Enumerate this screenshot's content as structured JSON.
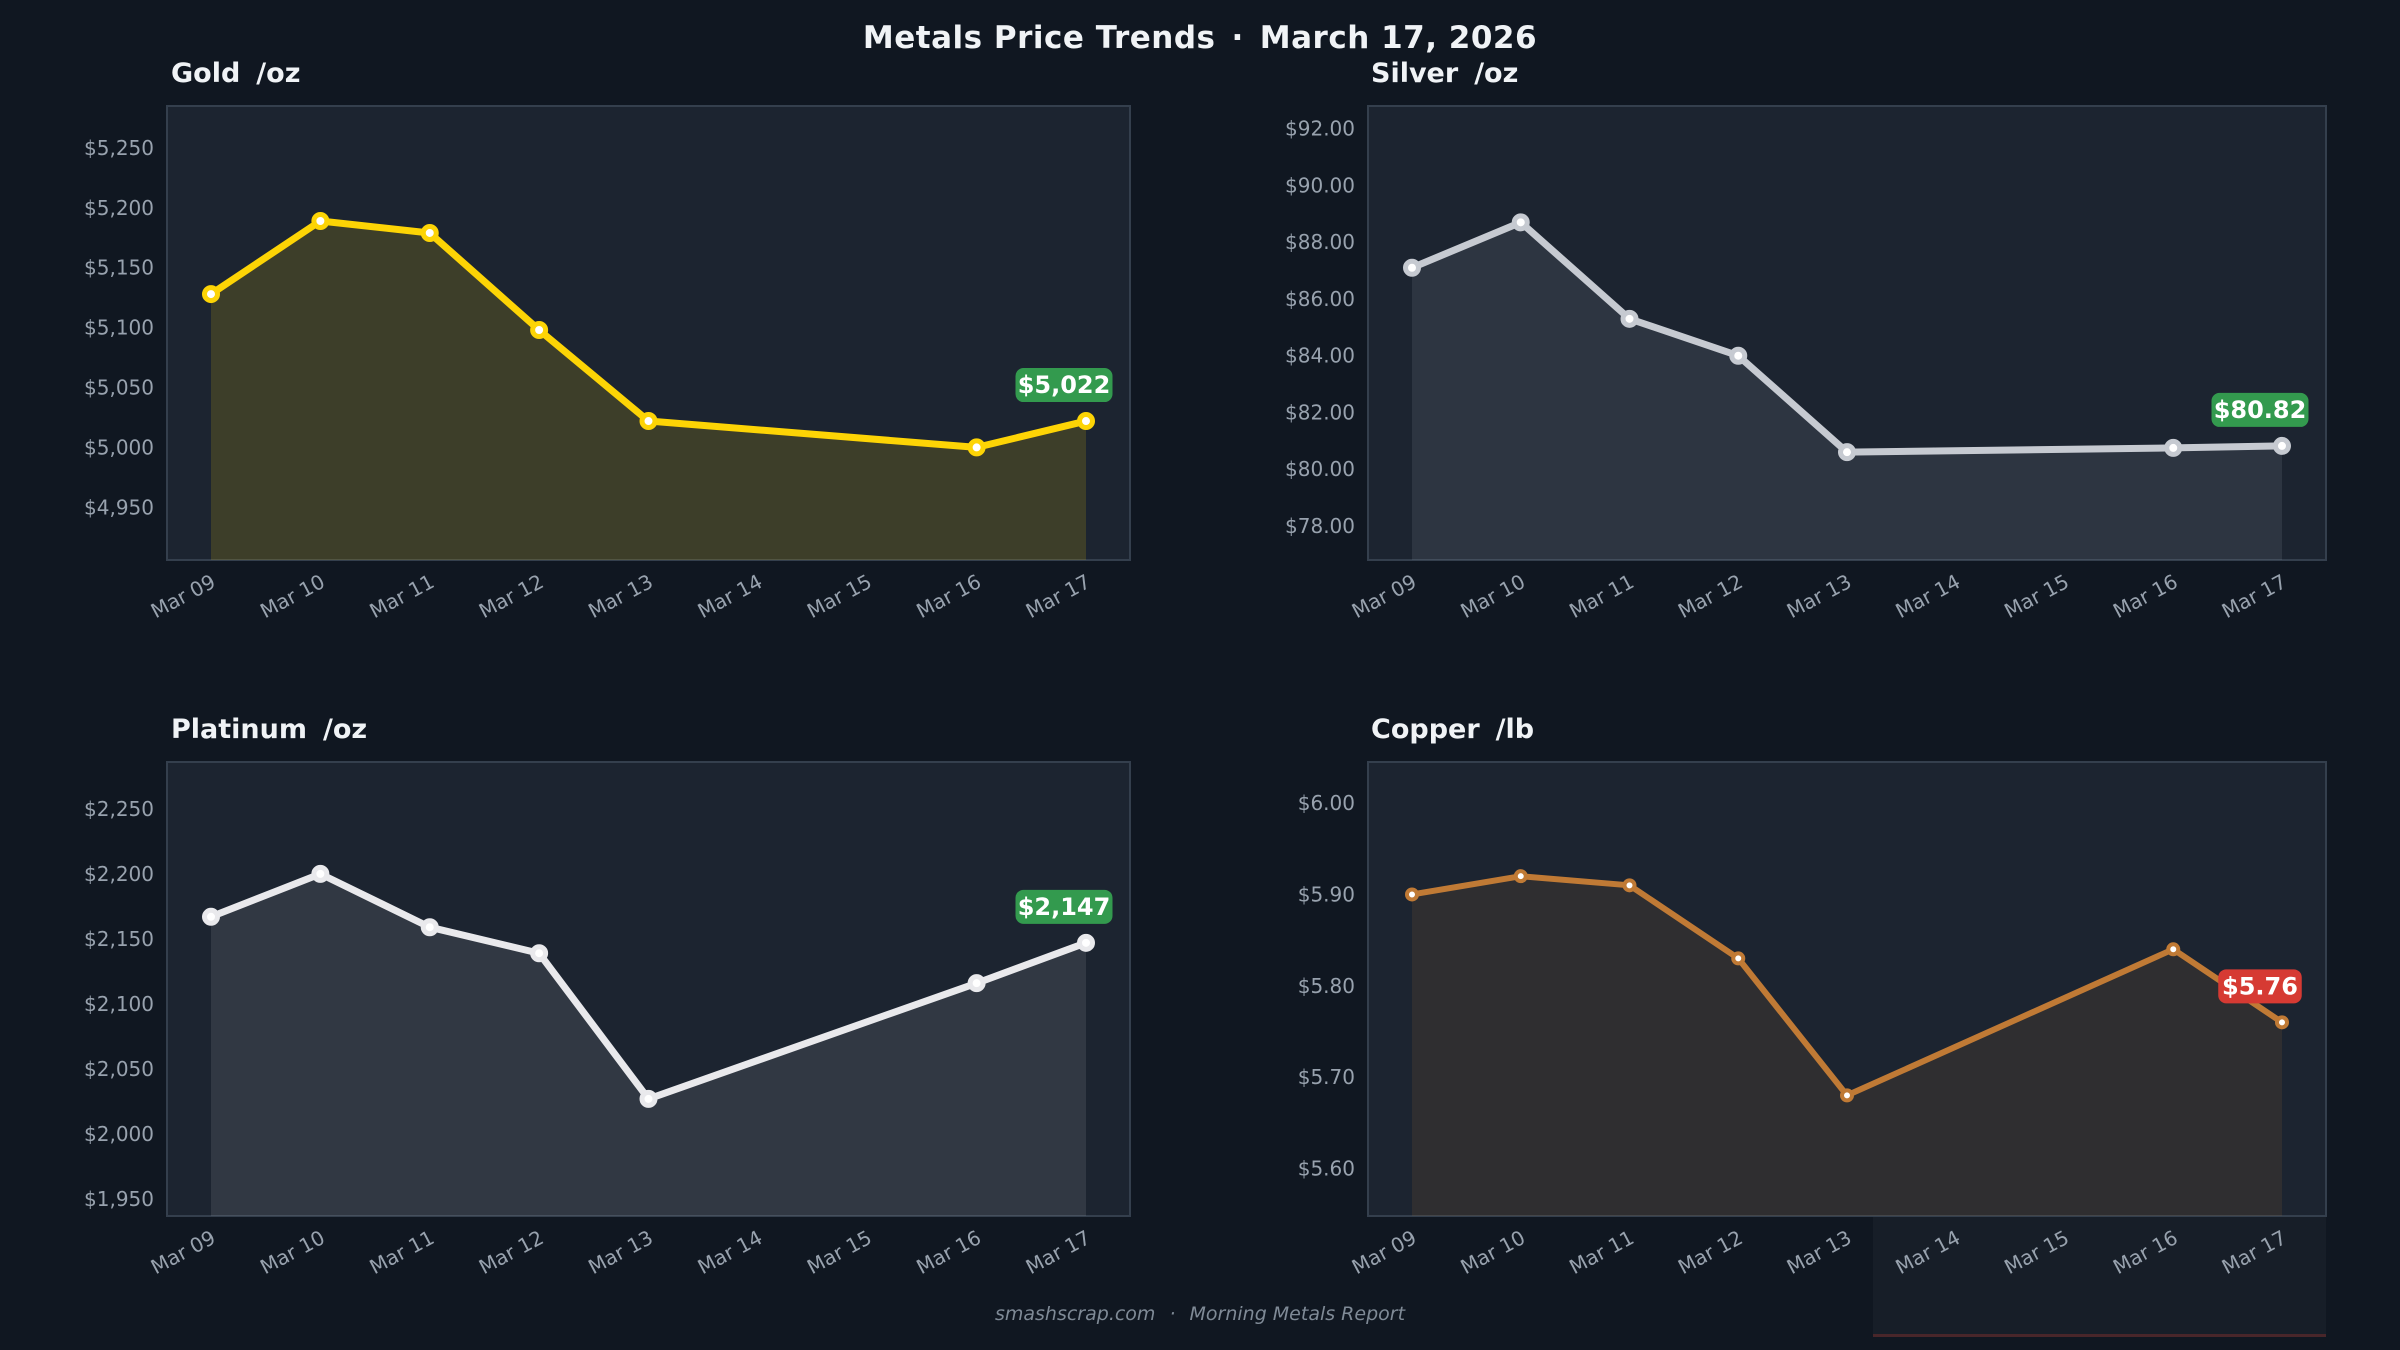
{
  "page": {
    "title": "Metals Price Trends",
    "title_separator": "·",
    "title_date": "March 17, 2026",
    "footer_site": "smashscrap.com",
    "footer_separator": "·",
    "footer_report": "Morning Metals Report"
  },
  "colors": {
    "background": "#101721",
    "plot_background": "#1c2430",
    "plot_border": "#343f4d",
    "tick_label": "#98a2ae",
    "title_text": "#f0f3f6",
    "footer_text": "#7f8a96",
    "badge_up": "#339a4e",
    "badge_down": "#d63a33",
    "badge_text": "#ffffff"
  },
  "chart_data": [
    {
      "id": "gold",
      "type": "line",
      "title": "Gold",
      "unit": "/oz",
      "categories": [
        "Mar 09",
        "Mar 10",
        "Mar 11",
        "Mar 12",
        "Mar 13",
        "Mar 14",
        "Mar 15",
        "Mar 16",
        "Mar 17"
      ],
      "values": [
        5128,
        5189,
        5179,
        5098,
        5022,
        null,
        null,
        5000,
        5022
      ],
      "yticks": [
        {
          "label": "$5,250",
          "value": 5250
        },
        {
          "label": "$5,200",
          "value": 5200
        },
        {
          "label": "$5,150",
          "value": 5150
        },
        {
          "label": "$5,100",
          "value": 5100
        },
        {
          "label": "$5,050",
          "value": 5050
        },
        {
          "label": "$5,000",
          "value": 5000
        },
        {
          "label": "$4,950",
          "value": 4950
        }
      ],
      "ylim": [
        4906,
        5285
      ],
      "line_color": "#fdd405",
      "fill_color": "rgba(253,212,5,0.15)",
      "last_value_label": "$5,022",
      "last_value_status": "up"
    },
    {
      "id": "silver",
      "type": "line",
      "title": "Silver",
      "unit": "/oz",
      "categories": [
        "Mar 09",
        "Mar 10",
        "Mar 11",
        "Mar 12",
        "Mar 13",
        "Mar 14",
        "Mar 15",
        "Mar 16",
        "Mar 17"
      ],
      "values": [
        87.1,
        88.7,
        85.3,
        84.0,
        80.6,
        null,
        null,
        80.75,
        80.82
      ],
      "yticks": [
        {
          "label": "$92.00",
          "value": 92
        },
        {
          "label": "$90.00",
          "value": 90
        },
        {
          "label": "$88.00",
          "value": 88
        },
        {
          "label": "$86.00",
          "value": 86
        },
        {
          "label": "$84.00",
          "value": 84
        },
        {
          "label": "$82.00",
          "value": 82
        },
        {
          "label": "$80.00",
          "value": 80
        },
        {
          "label": "$78.00",
          "value": 78
        }
      ],
      "ylim": [
        76.8,
        92.8
      ],
      "line_color": "#c6cad1",
      "fill_color": "rgba(198,204,213,0.10)",
      "last_value_label": "$80.82",
      "last_value_status": "up"
    },
    {
      "id": "platinum",
      "type": "line",
      "title": "Platinum",
      "unit": "/oz",
      "categories": [
        "Mar 09",
        "Mar 10",
        "Mar 11",
        "Mar 12",
        "Mar 13",
        "Mar 14",
        "Mar 15",
        "Mar 16",
        "Mar 17"
      ],
      "values": [
        2167,
        2200,
        2159,
        2139,
        2027,
        null,
        null,
        2116,
        2147
      ],
      "yticks": [
        {
          "label": "$2,250",
          "value": 2250
        },
        {
          "label": "$2,200",
          "value": 2200
        },
        {
          "label": "$2,150",
          "value": 2150
        },
        {
          "label": "$2,100",
          "value": 2100
        },
        {
          "label": "$2,050",
          "value": 2050
        },
        {
          "label": "$2,000",
          "value": 2000
        },
        {
          "label": "$1,950",
          "value": 1950
        }
      ],
      "ylim": [
        1937,
        2286
      ],
      "line_color": "#e9e9ec",
      "fill_color": "rgba(231,231,236,0.10)",
      "last_value_label": "$2,147",
      "last_value_status": "up"
    },
    {
      "id": "copper",
      "type": "line",
      "title": "Copper",
      "unit": "/lb",
      "categories": [
        "Mar 09",
        "Mar 10",
        "Mar 11",
        "Mar 12",
        "Mar 13",
        "Mar 14",
        "Mar 15",
        "Mar 16",
        "Mar 17"
      ],
      "values": [
        5.9,
        5.92,
        5.91,
        5.83,
        5.68,
        null,
        null,
        5.84,
        5.76
      ],
      "yticks": [
        {
          "label": "$6.00",
          "value": 6.0
        },
        {
          "label": "$5.90",
          "value": 5.9
        },
        {
          "label": "$5.80",
          "value": 5.8
        },
        {
          "label": "$5.70",
          "value": 5.7
        },
        {
          "label": "$5.60",
          "value": 5.6
        }
      ],
      "ylim": [
        5.548,
        6.045
      ],
      "line_color": "#c07a35",
      "fill_color": "rgba(192,122,53,0.12)",
      "last_value_label": "$5.76",
      "last_value_status": "down"
    }
  ]
}
